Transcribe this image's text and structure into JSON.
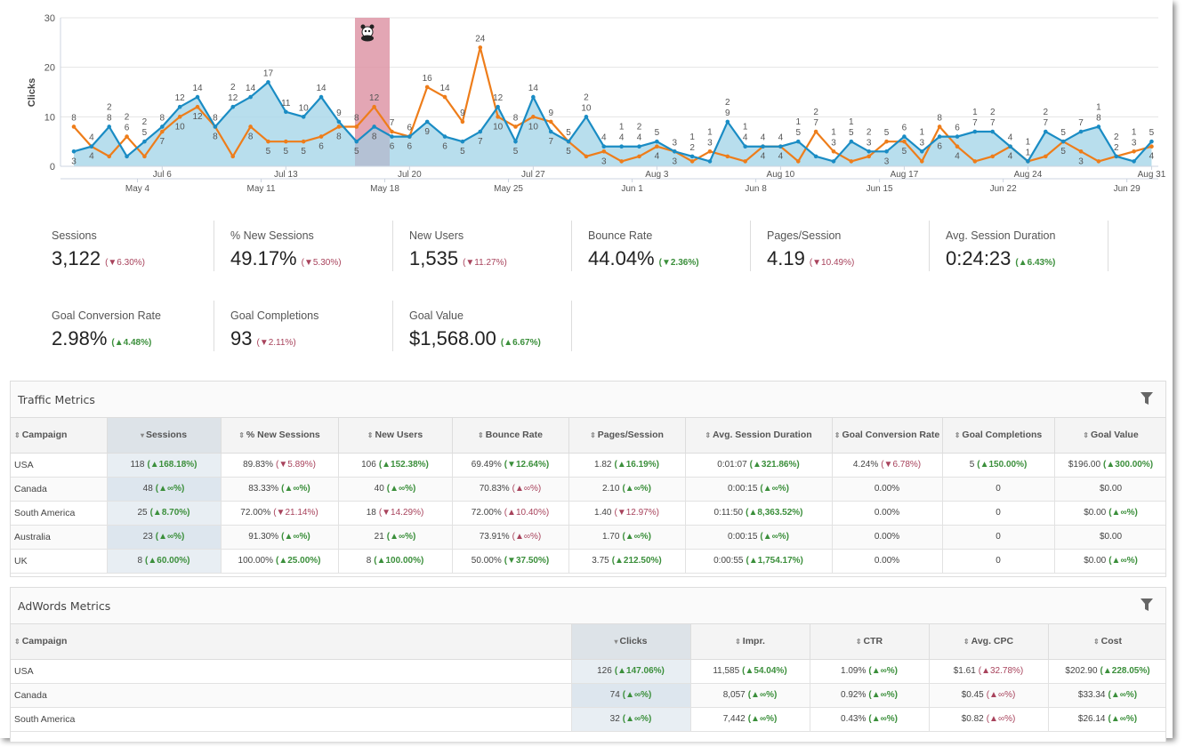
{
  "chart_data": {
    "type": "area",
    "ylabel": "Clicks",
    "ylim": [
      0,
      30
    ],
    "yticks": [
      "0",
      "10",
      "20",
      "30"
    ],
    "grid": true,
    "primary_x_ticks": [
      "Jul 6",
      "Jul 13",
      "Jul 20",
      "Jul 27",
      "Aug 3",
      "Aug 10",
      "Aug 17",
      "Aug 24",
      "Aug 31"
    ],
    "comparison_x_ticks": [
      "May 4",
      "May 11",
      "May 18",
      "May 25",
      "Jun 1",
      "Jun 8",
      "Jun 15",
      "Jun 22",
      "Jun 29"
    ],
    "series": [
      {
        "color": "#1a8cc4",
        "fill": "#acd8ea",
        "values": [
          3,
          4,
          8,
          2,
          5,
          8,
          12,
          14,
          8,
          12,
          14,
          17,
          11,
          10,
          14,
          9,
          5,
          8,
          6,
          6,
          9,
          6,
          5,
          7,
          12,
          5,
          14,
          7,
          5,
          10,
          4,
          4,
          4,
          5,
          3,
          2,
          1,
          9,
          4,
          4,
          4,
          5,
          2,
          1,
          5,
          3,
          3,
          6,
          3,
          6,
          6,
          7,
          7,
          4,
          1,
          7,
          5,
          7,
          8,
          2,
          1,
          5
        ]
      },
      {
        "color": "#ee7d1a",
        "values": [
          8,
          4,
          2,
          6,
          2,
          7,
          10,
          12,
          8,
          2,
          8,
          5,
          5,
          5,
          6,
          8,
          8,
          12,
          7,
          6,
          16,
          14,
          9,
          24,
          10,
          8,
          10,
          9,
          5,
          2,
          3,
          1,
          2,
          4,
          3,
          1,
          3,
          2,
          1,
          4,
          4,
          1,
          7,
          3,
          1,
          2,
          5,
          5,
          1,
          8,
          4,
          1,
          2,
          4,
          1,
          2,
          5,
          3,
          1,
          2,
          3,
          4
        ]
      }
    ],
    "annotation": {
      "type": "highlight-band",
      "color": "#e8a0ae",
      "icon": "panda-icon"
    }
  },
  "kpis": [
    {
      "label": "Sessions",
      "value": "3,122",
      "delta": "6.30%",
      "dir": "down",
      "tone": "bad"
    },
    {
      "label": "% New Sessions",
      "value": "49.17%",
      "delta": "5.30%",
      "dir": "down",
      "tone": "bad"
    },
    {
      "label": "New Users",
      "value": "1,535",
      "delta": "11.27%",
      "dir": "down",
      "tone": "bad"
    },
    {
      "label": "Bounce Rate",
      "value": "44.04%",
      "delta": "2.36%",
      "dir": "down",
      "tone": "good"
    },
    {
      "label": "Pages/Session",
      "value": "4.19",
      "delta": "10.49%",
      "dir": "down",
      "tone": "bad"
    },
    {
      "label": "Avg. Session Duration",
      "value": "0:24:23",
      "delta": "6.43%",
      "dir": "up",
      "tone": "good"
    },
    {
      "label": "Goal Conversion Rate",
      "value": "2.98%",
      "delta": "4.48%",
      "dir": "up",
      "tone": "good"
    },
    {
      "label": "Goal Completions",
      "value": "93",
      "delta": "2.11%",
      "dir": "down",
      "tone": "bad"
    },
    {
      "label": "Goal Value",
      "value": "$1,568.00",
      "delta": "6.67%",
      "dir": "up",
      "tone": "good"
    }
  ],
  "traffic": {
    "title": "Traffic Metrics",
    "columns": [
      "Campaign",
      "Sessions",
      "% New Sessions",
      "New Users",
      "Bounce Rate",
      "Pages/Session",
      "Avg. Session Duration",
      "Goal Conversion Rate",
      "Goal Completions",
      "Goal Value"
    ],
    "sorted_column": 1,
    "rows": [
      [
        "USA",
        {
          "v": "118",
          "d": "168.18%",
          "dir": "up",
          "t": "good"
        },
        {
          "v": "89.83%",
          "d": "5.89%",
          "dir": "down",
          "t": "bad"
        },
        {
          "v": "106",
          "d": "152.38%",
          "dir": "up",
          "t": "good"
        },
        {
          "v": "69.49%",
          "d": "12.64%",
          "dir": "down",
          "t": "good"
        },
        {
          "v": "1.82",
          "d": "16.19%",
          "dir": "up",
          "t": "good"
        },
        {
          "v": "0:01:07",
          "d": "321.86%",
          "dir": "up",
          "t": "good"
        },
        {
          "v": "4.24%",
          "d": "6.78%",
          "dir": "down",
          "t": "bad"
        },
        {
          "v": "5",
          "d": "150.00%",
          "dir": "up",
          "t": "good"
        },
        {
          "v": "$196.00",
          "d": "300.00%",
          "dir": "up",
          "t": "good"
        }
      ],
      [
        "Canada",
        {
          "v": "48",
          "d": "∞%",
          "dir": "up",
          "t": "good"
        },
        {
          "v": "83.33%",
          "d": "∞%",
          "dir": "up",
          "t": "good"
        },
        {
          "v": "40",
          "d": "∞%",
          "dir": "up",
          "t": "good"
        },
        {
          "v": "70.83%",
          "d": "∞%",
          "dir": "up",
          "t": "bad"
        },
        {
          "v": "2.10",
          "d": "∞%",
          "dir": "up",
          "t": "good"
        },
        {
          "v": "0:00:15",
          "d": "∞%",
          "dir": "up",
          "t": "good"
        },
        {
          "v": "0.00%"
        },
        {
          "v": "0"
        },
        {
          "v": "$0.00"
        }
      ],
      [
        "South America",
        {
          "v": "25",
          "d": "8.70%",
          "dir": "up",
          "t": "good"
        },
        {
          "v": "72.00%",
          "d": "21.14%",
          "dir": "down",
          "t": "bad"
        },
        {
          "v": "18",
          "d": "14.29%",
          "dir": "down",
          "t": "bad"
        },
        {
          "v": "72.00%",
          "d": "10.40%",
          "dir": "up",
          "t": "bad"
        },
        {
          "v": "1.40",
          "d": "12.97%",
          "dir": "down",
          "t": "bad"
        },
        {
          "v": "0:11:50",
          "d": "8,363.52%",
          "dir": "up",
          "t": "good"
        },
        {
          "v": "0.00%"
        },
        {
          "v": "0"
        },
        {
          "v": "$0.00",
          "d": "∞%",
          "dir": "up",
          "t": "good"
        }
      ],
      [
        "Australia",
        {
          "v": "23",
          "d": "∞%",
          "dir": "up",
          "t": "good"
        },
        {
          "v": "91.30%",
          "d": "∞%",
          "dir": "up",
          "t": "good"
        },
        {
          "v": "21",
          "d": "∞%",
          "dir": "up",
          "t": "good"
        },
        {
          "v": "73.91%",
          "d": "∞%",
          "dir": "up",
          "t": "bad"
        },
        {
          "v": "1.70",
          "d": "∞%",
          "dir": "up",
          "t": "good"
        },
        {
          "v": "0:00:15",
          "d": "∞%",
          "dir": "up",
          "t": "good"
        },
        {
          "v": "0.00%"
        },
        {
          "v": "0"
        },
        {
          "v": "$0.00"
        }
      ],
      [
        "UK",
        {
          "v": "8",
          "d": "60.00%",
          "dir": "up",
          "t": "good"
        },
        {
          "v": "100.00%",
          "d": "25.00%",
          "dir": "up",
          "t": "good"
        },
        {
          "v": "8",
          "d": "100.00%",
          "dir": "up",
          "t": "good"
        },
        {
          "v": "50.00%",
          "d": "37.50%",
          "dir": "down",
          "t": "good"
        },
        {
          "v": "3.75",
          "d": "212.50%",
          "dir": "up",
          "t": "good"
        },
        {
          "v": "0:00:55",
          "d": "1,754.17%",
          "dir": "up",
          "t": "good"
        },
        {
          "v": "0.00%"
        },
        {
          "v": "0"
        },
        {
          "v": "$0.00",
          "d": "∞%",
          "dir": "up",
          "t": "good"
        }
      ]
    ]
  },
  "adwords": {
    "title": "AdWords Metrics",
    "columns": [
      "Campaign",
      "Clicks",
      "Impr.",
      "CTR",
      "Avg. CPC",
      "Cost"
    ],
    "sorted_column": 1,
    "rows": [
      [
        "USA",
        {
          "v": "126",
          "d": "147.06%",
          "dir": "up",
          "t": "good"
        },
        {
          "v": "11,585",
          "d": "54.04%",
          "dir": "up",
          "t": "good"
        },
        {
          "v": "1.09%",
          "d": "∞%",
          "dir": "up",
          "t": "good"
        },
        {
          "v": "$1.61",
          "d": "32.78%",
          "dir": "up",
          "t": "bad"
        },
        {
          "v": "$202.90",
          "d": "228.05%",
          "dir": "up",
          "t": "good"
        }
      ],
      [
        "Canada",
        {
          "v": "74",
          "d": "∞%",
          "dir": "up",
          "t": "good"
        },
        {
          "v": "8,057",
          "d": "∞%",
          "dir": "up",
          "t": "good"
        },
        {
          "v": "0.92%",
          "d": "∞%",
          "dir": "up",
          "t": "good"
        },
        {
          "v": "$0.45",
          "d": "∞%",
          "dir": "up",
          "t": "bad"
        },
        {
          "v": "$33.34",
          "d": "∞%",
          "dir": "up",
          "t": "good"
        }
      ],
      [
        "South America",
        {
          "v": "32",
          "d": "∞%",
          "dir": "up",
          "t": "good"
        },
        {
          "v": "7,442",
          "d": "∞%",
          "dir": "up",
          "t": "good"
        },
        {
          "v": "0.43%",
          "d": "∞%",
          "dir": "up",
          "t": "good"
        },
        {
          "v": "$0.82",
          "d": "∞%",
          "dir": "up",
          "t": "bad"
        },
        {
          "v": "$26.14",
          "d": "∞%",
          "dir": "up",
          "t": "good"
        }
      ]
    ]
  }
}
